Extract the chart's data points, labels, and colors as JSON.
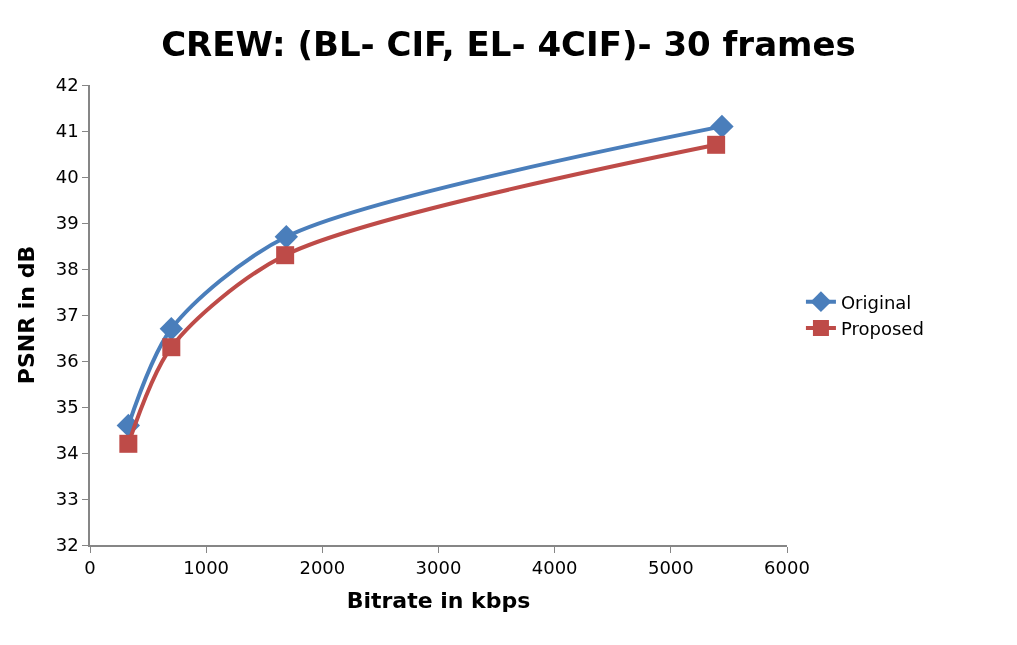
{
  "chart_data": {
    "type": "line",
    "title": "CREW: (BL- CIF, EL- 4CIF)- 30 frames",
    "xlabel": "Bitrate in kbps",
    "ylabel": "PSNR in dB",
    "series": [
      {
        "name": "Original",
        "color": "#4a7ebb",
        "marker": "diamond",
        "x": [
          330,
          700,
          1690,
          5440
        ],
        "values": [
          34.6,
          36.7,
          38.7,
          41.1
        ]
      },
      {
        "name": "Proposed",
        "color": "#be4b48",
        "marker": "square",
        "x": [
          330,
          700,
          1680,
          5390
        ],
        "values": [
          34.2,
          36.3,
          38.3,
          40.7
        ]
      }
    ],
    "xlim": [
      0,
      6000
    ],
    "xticks": [
      0,
      1000,
      2000,
      3000,
      4000,
      5000,
      6000
    ],
    "ylim": [
      32,
      42
    ],
    "yticks": [
      32,
      33,
      34,
      35,
      36,
      37,
      38,
      39,
      40,
      41,
      42
    ],
    "legend": "right",
    "line_style": "solid"
  }
}
